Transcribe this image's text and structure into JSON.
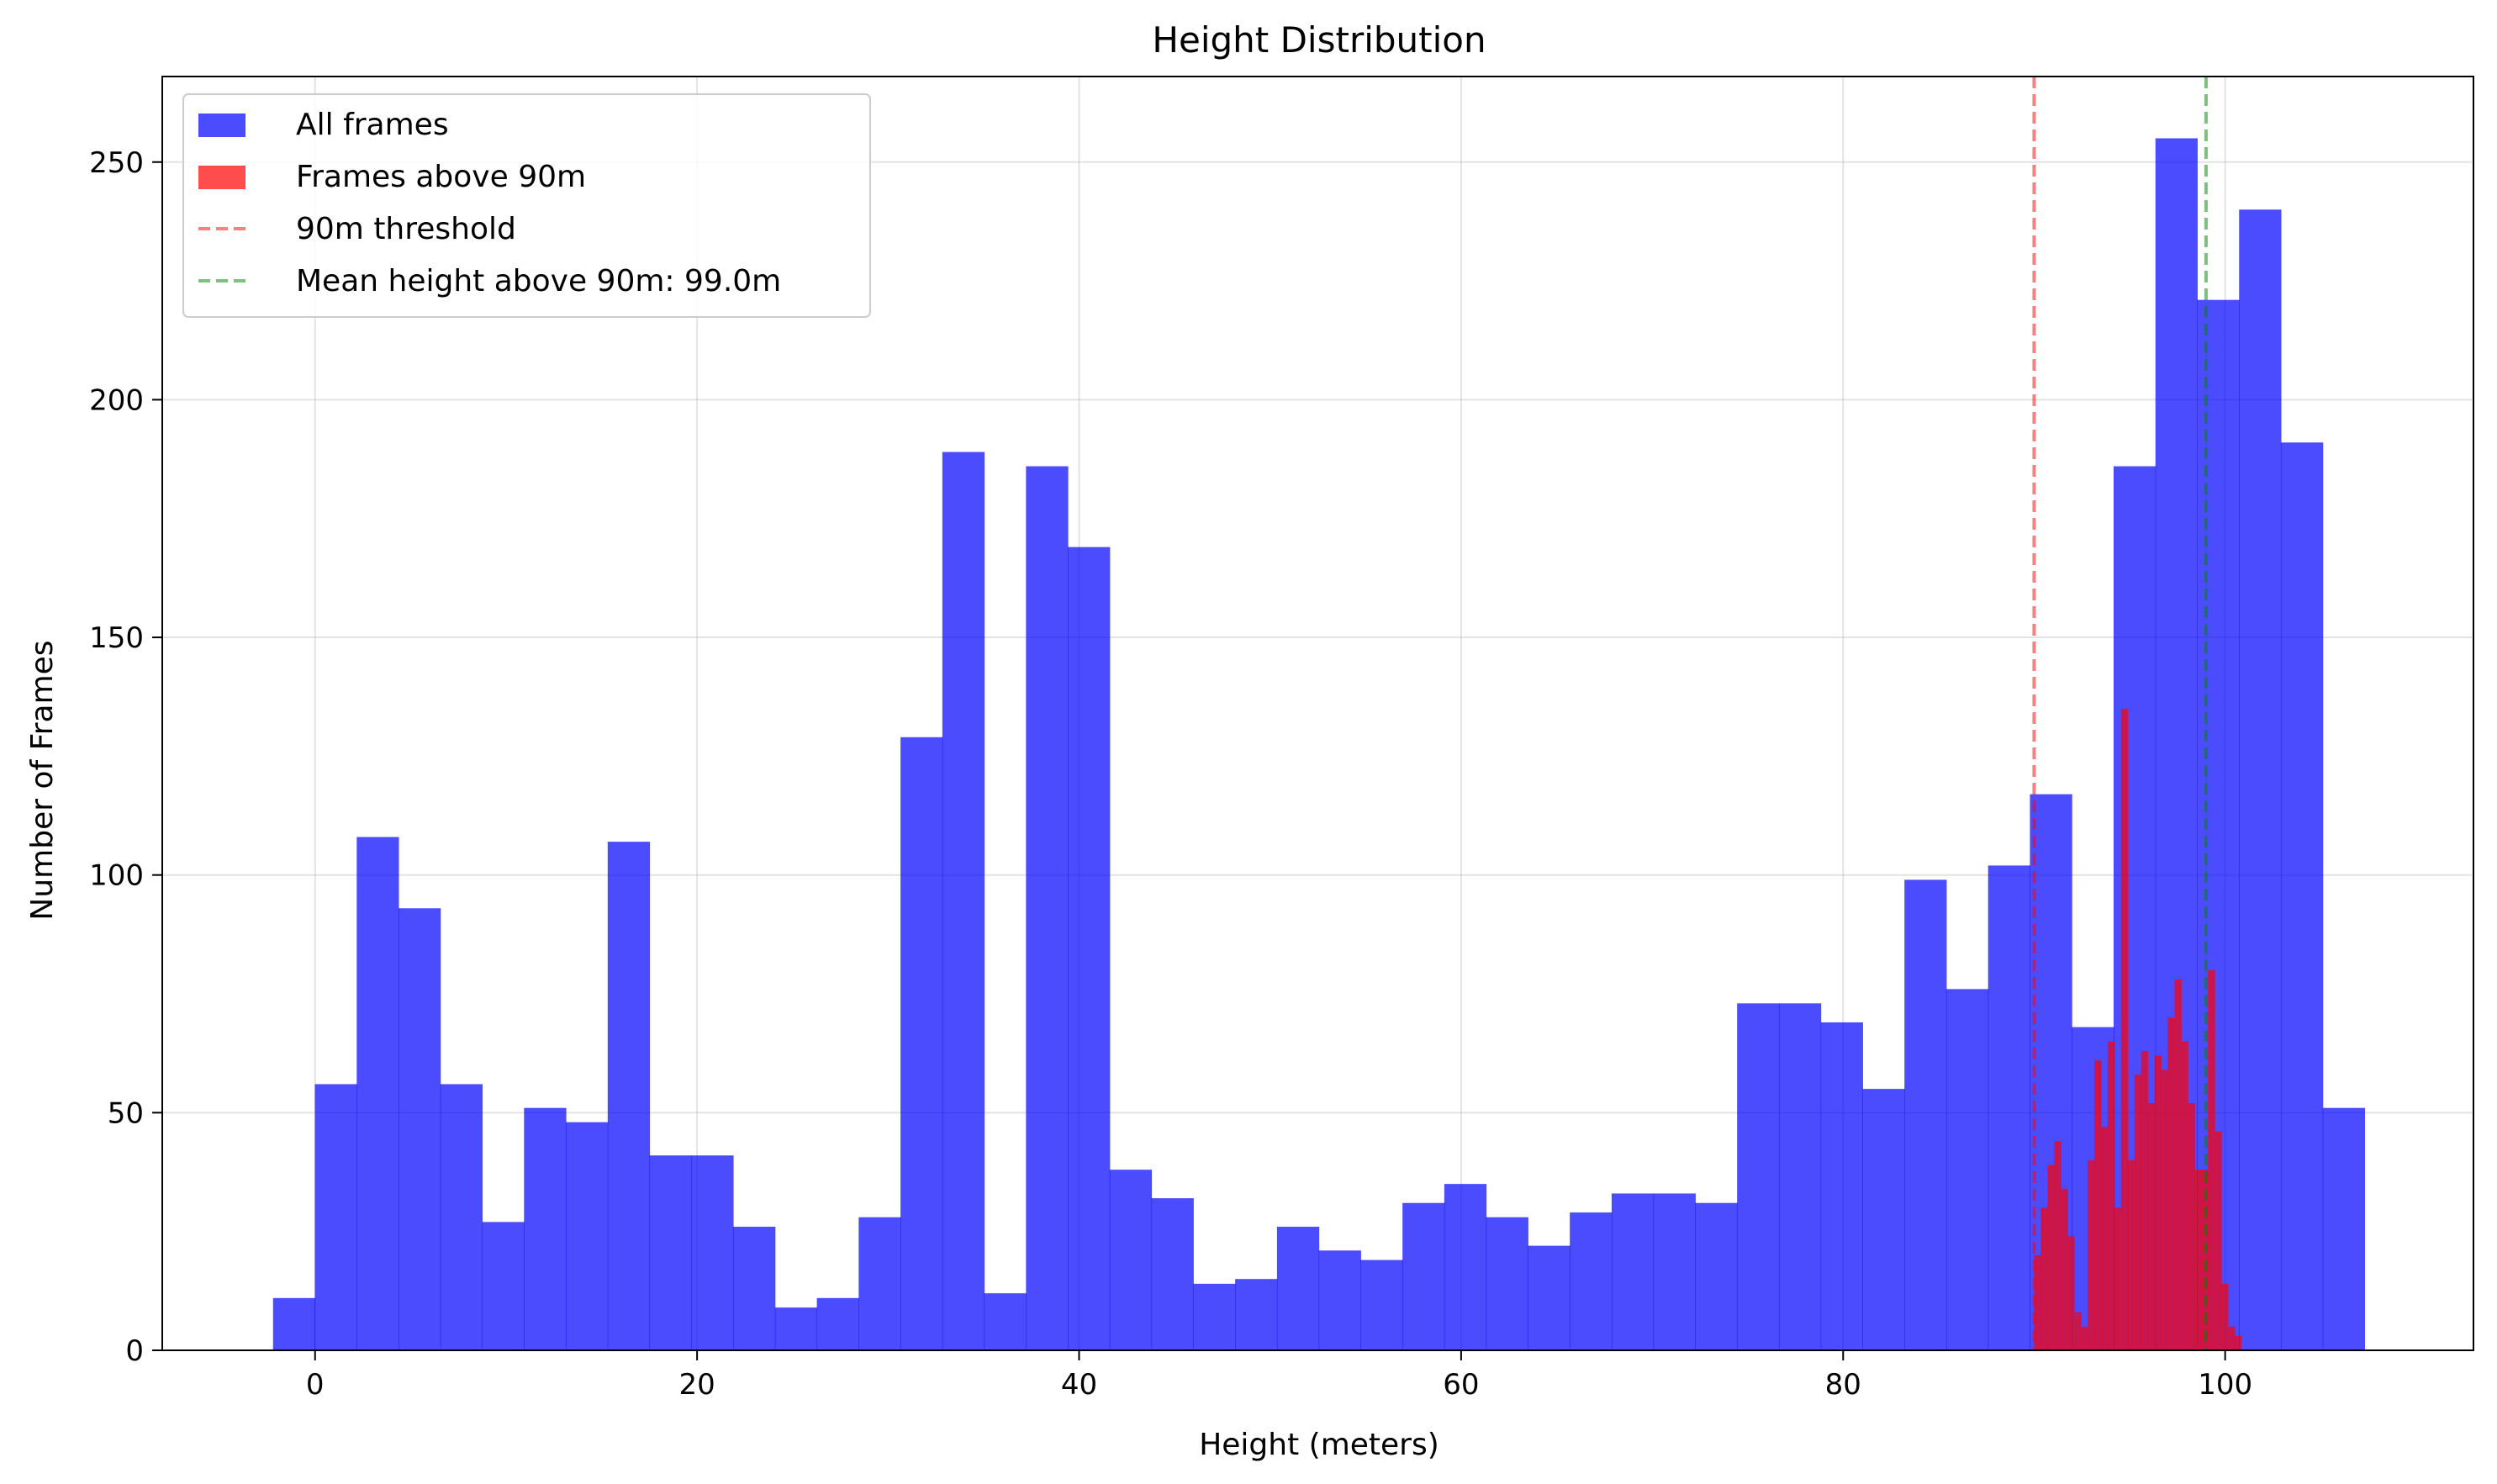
{
  "chart_data": {
    "type": "bar",
    "title": "Height Distribution",
    "xlabel": "Height (meters)",
    "ylabel": "Number of Frames",
    "xlim": [
      -8,
      113
    ],
    "ylim": [
      0,
      268
    ],
    "xticks": [
      0,
      20,
      40,
      60,
      80,
      100
    ],
    "yticks": [
      0,
      50,
      100,
      150,
      200,
      250
    ],
    "grid": true,
    "legend_placement": "top-left",
    "colors": {
      "all": "#0000ff",
      "above": "#ff0000",
      "threshold": "#ff0000",
      "mean": "#008000"
    },
    "series": [
      {
        "name": "All frames",
        "bin_start": -2.2,
        "bin_width": 2.19,
        "values": [
          11,
          56,
          108,
          93,
          56,
          27,
          51,
          48,
          107,
          41,
          41,
          26,
          9,
          11,
          28,
          129,
          189,
          12,
          186,
          169,
          38,
          32,
          14,
          15,
          26,
          21,
          19,
          31,
          35,
          28,
          22,
          29,
          33,
          33,
          31,
          73,
          73,
          69,
          55,
          99,
          76,
          102,
          117,
          68,
          186,
          255,
          221,
          240,
          191,
          51
        ]
      },
      {
        "name": "Frames above 90m",
        "bin_start": 90.0,
        "bin_width": 0.35,
        "values": [
          20,
          30,
          39,
          44,
          34,
          24,
          8,
          5,
          40,
          61,
          47,
          65,
          30,
          135,
          40,
          58,
          63,
          52,
          62,
          59,
          70,
          78,
          65,
          52,
          38,
          38,
          80,
          46,
          14,
          5,
          3
        ]
      }
    ],
    "reference_lines": [
      {
        "name": "90m threshold",
        "x": 90.0,
        "style": "dashed"
      },
      {
        "name": "Mean height above 90m: 99.0m",
        "x": 99.0,
        "style": "dashed"
      }
    ]
  }
}
